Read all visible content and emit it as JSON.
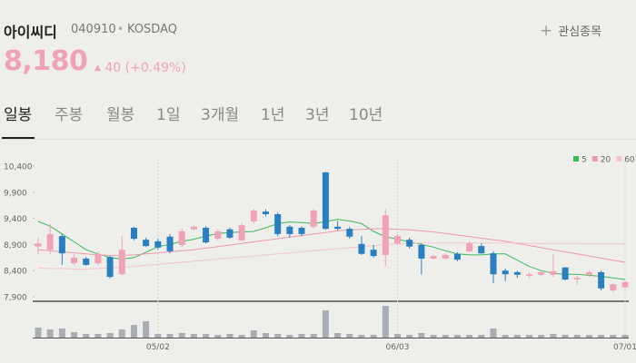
{
  "header": {
    "name": "아이씨디",
    "code": "040910",
    "market": "KOSDAQ",
    "watchlist": "관심종목",
    "price": "8,180",
    "change": "40",
    "change_percent": "(+0.49%)",
    "tabs": [
      "일봉",
      "주봉",
      "월봉",
      "1일",
      "3개월",
      "1년",
      "3년",
      "10년"
    ]
  },
  "chart_data": {
    "type": "candlestick",
    "categories": [
      null,
      null,
      null,
      null,
      null,
      null,
      null,
      null,
      null,
      null,
      "05/02",
      null,
      null,
      null,
      null,
      null,
      null,
      null,
      null,
      null,
      null,
      null,
      null,
      null,
      null,
      null,
      null,
      null,
      null,
      null,
      "06/03",
      null,
      null,
      null,
      null,
      null,
      null,
      null,
      null,
      null,
      null,
      null,
      null,
      null,
      null,
      null,
      null,
      null,
      null,
      "07/01"
    ],
    "open": [
      8860,
      8800,
      9060,
      8540,
      8630,
      8540,
      8660,
      8330,
      9220,
      8990,
      8960,
      9050,
      8890,
      9190,
      9220,
      9010,
      9190,
      8980,
      9340,
      9530,
      9480,
      9240,
      9220,
      9240,
      10280,
      9240,
      9200,
      8910,
      8800,
      8700,
      8920,
      8990,
      8890,
      8630,
      8630,
      8720,
      8770,
      8870,
      8730,
      8400,
      8370,
      8300,
      8320,
      8320,
      8460,
      8230,
      8320,
      8370,
      8020,
      8080
    ],
    "high": [
      9030,
      9290,
      9100,
      8720,
      8660,
      8770,
      8680,
      9060,
      9240,
      9030,
      9010,
      9100,
      9200,
      9270,
      9250,
      9190,
      9220,
      9310,
      9580,
      9570,
      9510,
      9270,
      9250,
      9580,
      10290,
      9350,
      9240,
      9060,
      8890,
      9580,
      9100,
      9030,
      8920,
      8700,
      8730,
      8750,
      8960,
      8920,
      8770,
      8440,
      8400,
      8370,
      8390,
      8720,
      8470,
      8300,
      8400,
      8400,
      8150,
      8200
    ],
    "low": [
      8720,
      8720,
      8510,
      8510,
      8490,
      8510,
      8250,
      8320,
      8980,
      8850,
      8800,
      8730,
      8850,
      9170,
      8920,
      8980,
      9010,
      8960,
      9310,
      9440,
      9060,
      9030,
      9060,
      9200,
      9180,
      9170,
      9010,
      8700,
      8650,
      8490,
      8890,
      8820,
      8330,
      8610,
      8610,
      8580,
      8750,
      8720,
      8160,
      8200,
      8260,
      8260,
      8300,
      8280,
      8210,
      8130,
      8280,
      8020,
      8000,
      8060
    ],
    "close": [
      8920,
      9100,
      8730,
      8650,
      8510,
      8720,
      8280,
      8800,
      9010,
      8870,
      8840,
      8770,
      9150,
      9240,
      8940,
      9150,
      9030,
      9270,
      9550,
      9480,
      9100,
      9100,
      9100,
      9550,
      9200,
      9200,
      9050,
      8720,
      8680,
      9460,
      9060,
      8860,
      8630,
      8680,
      8700,
      8610,
      8920,
      8730,
      8330,
      8330,
      8320,
      8330,
      8370,
      8390,
      8230,
      8260,
      8370,
      8060,
      8140,
      8180
    ],
    "up_color": "#f0a3b6",
    "down_color": "#2a7fc1",
    "ylim": [
      7900,
      10400
    ],
    "yticks": [
      {
        "value": 7900,
        "label": "7,900"
      },
      {
        "value": 8400,
        "label": "8,400"
      },
      {
        "value": 8900,
        "label": "8,900"
      },
      {
        "value": 9400,
        "label": "9,400"
      },
      {
        "value": 9900,
        "label": "9,900"
      },
      {
        "value": 10400,
        "label": "10,400"
      }
    ],
    "series": [
      {
        "name": "5",
        "color": "#3cb95a",
        "values": [
          9340,
          9250,
          9100,
          8950,
          8800,
          8720,
          8650,
          8620,
          8650,
          8750,
          8860,
          8900,
          8960,
          9000,
          9060,
          9110,
          9130,
          9140,
          9150,
          9220,
          9300,
          9330,
          9320,
          9300,
          9340,
          9380,
          9350,
          9300,
          9150,
          9050,
          9000,
          8950,
          8900,
          8850,
          8780,
          8720,
          8700,
          8700,
          8720,
          8720,
          8600,
          8480,
          8400,
          8350,
          8330,
          8330,
          8310,
          8290,
          8260,
          8230
        ]
      },
      {
        "name": "20",
        "color": "#ec9aae",
        "values": [
          8800,
          8780,
          8760,
          8740,
          8720,
          8700,
          8690,
          8690,
          8700,
          8720,
          8740,
          8760,
          8780,
          8800,
          8830,
          8860,
          8890,
          8920,
          8950,
          8980,
          9010,
          9040,
          9070,
          9100,
          9130,
          9160,
          9180,
          9190,
          9200,
          9200,
          9190,
          9180,
          9160,
          9140,
          9110,
          9080,
          9050,
          9020,
          8990,
          8960,
          8920,
          8880,
          8840,
          8800,
          8760,
          8720,
          8680,
          8640,
          8600,
          8560
        ]
      },
      {
        "name": "60",
        "color": "#f4c4cf",
        "values": [
          8450,
          8440,
          8440,
          8430,
          8430,
          8440,
          8450,
          8460,
          8480,
          8500,
          8520,
          8540,
          8560,
          8580,
          8600,
          8620,
          8640,
          8660,
          8680,
          8700,
          8720,
          8740,
          8760,
          8780,
          8800,
          8820,
          8840,
          8860,
          8880,
          8900,
          8910,
          8920,
          8930,
          8930,
          8930,
          8930,
          8930,
          8930,
          8930,
          8930,
          8930,
          8920,
          8920,
          8920,
          8920,
          8920,
          8910,
          8910,
          8910,
          8910
        ]
      }
    ],
    "volume": {
      "color": "#a9aeb3",
      "ylim": [
        0,
        40
      ],
      "values": [
        11,
        9,
        10,
        6,
        4,
        4,
        5,
        9,
        14,
        18,
        4,
        4,
        5,
        4,
        4,
        3,
        4,
        3,
        8,
        5,
        4,
        3,
        4,
        4,
        30,
        5,
        4,
        3,
        3,
        35,
        4,
        3,
        5,
        3,
        3,
        3,
        3,
        3,
        10,
        3,
        3,
        3,
        3,
        4,
        3,
        3,
        3,
        3,
        3,
        3
      ]
    }
  }
}
